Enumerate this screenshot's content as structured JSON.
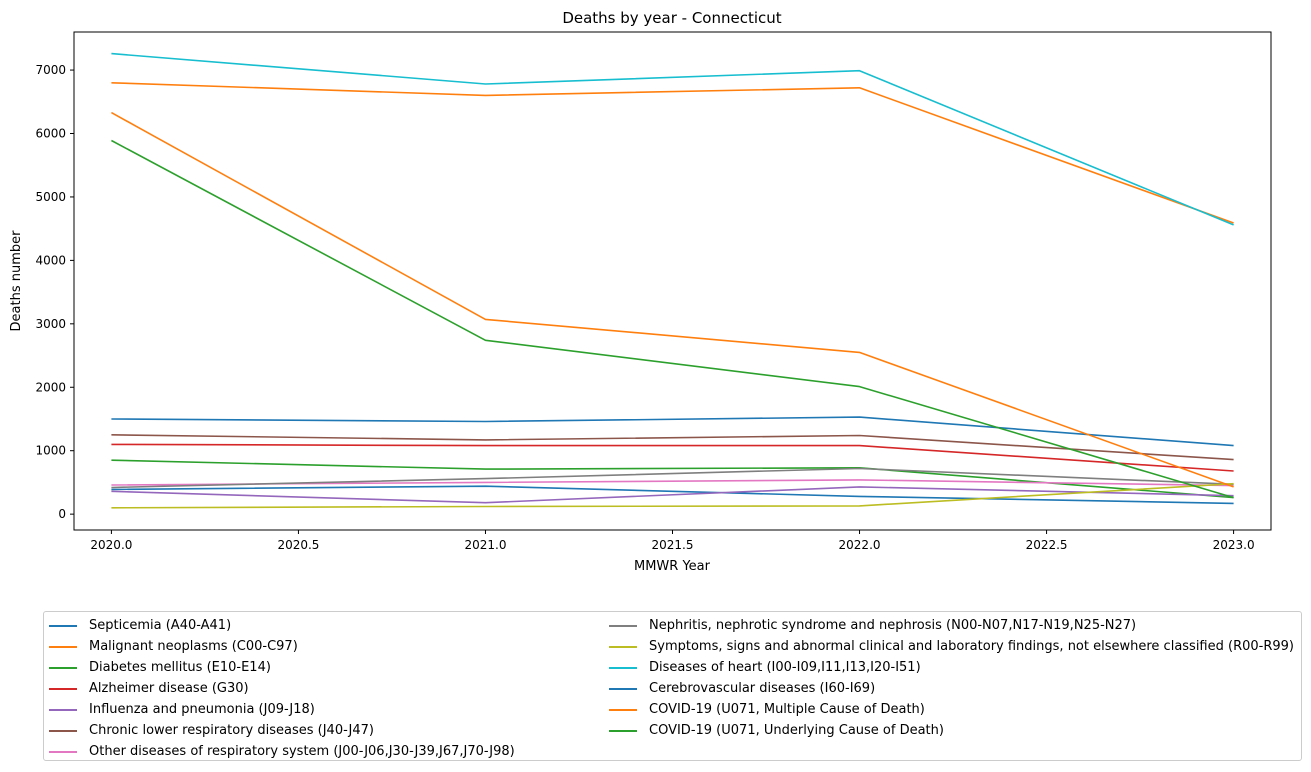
{
  "chart_data": {
    "type": "line",
    "title": "Deaths by year - Connecticut",
    "xlabel": "MMWR Year",
    "ylabel": "Deaths number",
    "x": [
      2020,
      2021,
      2022,
      2023
    ],
    "xlim": [
      2019.9,
      2023.1
    ],
    "ylim": [
      -250,
      7600
    ],
    "xticks": [
      2020.0,
      2020.5,
      2021.0,
      2021.5,
      2022.0,
      2022.5,
      2023.0
    ],
    "xtick_labels": [
      "2020.0",
      "2020.5",
      "2021.0",
      "2021.5",
      "2022.0",
      "2022.5",
      "2023.0"
    ],
    "yticks": [
      0,
      1000,
      2000,
      3000,
      4000,
      5000,
      6000,
      7000
    ],
    "ytick_labels": [
      "0",
      "1000",
      "2000",
      "3000",
      "4000",
      "5000",
      "6000",
      "7000"
    ],
    "grid": false,
    "legend_placement": "below",
    "series": [
      {
        "name": "Septicemia (A40-A41)",
        "color": "#1f77b4",
        "values": [
          390,
          440,
          280,
          170
        ]
      },
      {
        "name": "Malignant neoplasms (C00-C97)",
        "color": "#ff7f0e",
        "values": [
          6800,
          6600,
          6720,
          4590
        ]
      },
      {
        "name": "Diabetes mellitus (E10-E14)",
        "color": "#2ca02c",
        "values": [
          850,
          710,
          730,
          260
        ]
      },
      {
        "name": "Alzheimer disease (G30)",
        "color": "#d62728",
        "values": [
          1100,
          1080,
          1080,
          680
        ]
      },
      {
        "name": "Influenza and pneumonia (J09-J18)",
        "color": "#9467bd",
        "values": [
          360,
          180,
          430,
          290
        ]
      },
      {
        "name": "Chronic lower respiratory diseases (J40-J47)",
        "color": "#8c564b",
        "values": [
          1250,
          1170,
          1240,
          860
        ]
      },
      {
        "name": "Other diseases of respiratory system (J00-J06,J30-J39,J67,J70-J98)",
        "color": "#e377c2",
        "values": [
          460,
          500,
          540,
          450
        ]
      },
      {
        "name": "Nephritis, nephrotic syndrome and nephrosis (N00-N07,N17-N19,N25-N27)",
        "color": "#7f7f7f",
        "values": [
          420,
          560,
          720,
          470
        ]
      },
      {
        "name": "Symptoms, signs and abnormal clinical and laboratory findings, not elsewhere classified (R00-R99)",
        "color": "#bcbd22",
        "values": [
          100,
          120,
          130,
          480
        ]
      },
      {
        "name": "Diseases of heart (I00-I09,I11,I13,I20-I51)",
        "color": "#17becf",
        "values": [
          7260,
          6780,
          6990,
          4560
        ]
      },
      {
        "name": "Cerebrovascular diseases (I60-I69)",
        "color": "#1f77b4",
        "values": [
          1500,
          1460,
          1530,
          1080
        ]
      },
      {
        "name": "COVID-19 (U071, Multiple Cause of Death)",
        "color": "#ff7f0e",
        "values": [
          6330,
          3070,
          2550,
          430
        ]
      },
      {
        "name": "COVID-19 (U071, Underlying Cause of Death)",
        "color": "#2ca02c",
        "values": [
          5890,
          2740,
          2010,
          260
        ]
      }
    ]
  }
}
